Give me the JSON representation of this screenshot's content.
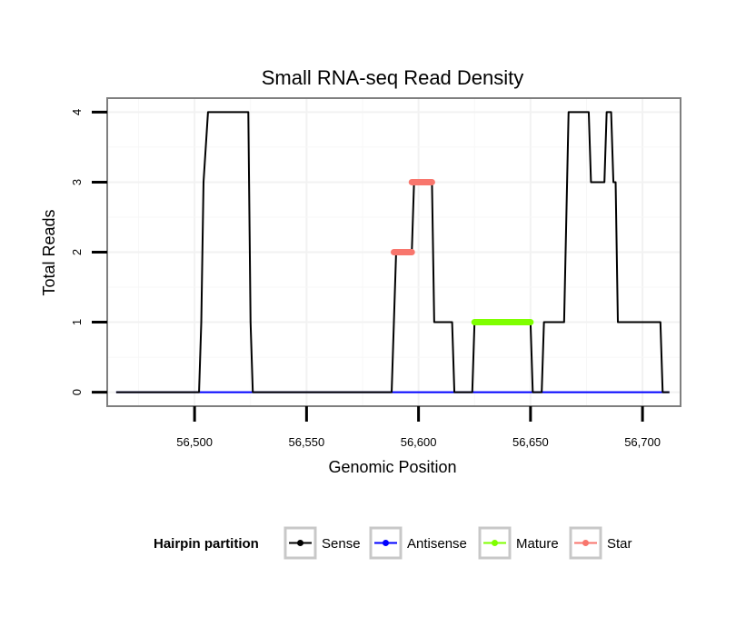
{
  "chart_data": {
    "type": "line",
    "title": "Small RNA-seq Read Density",
    "xlabel": "Genomic Position",
    "ylabel": "Total Reads",
    "xlim": [
      56461,
      56717
    ],
    "ylim": [
      -0.2,
      4.2
    ],
    "x_ticks": [
      56500,
      56550,
      56600,
      56650,
      56700
    ],
    "x_tick_labels": [
      "56,500",
      "56,550",
      "56,600",
      "56,650",
      "56,700"
    ],
    "y_ticks": [
      0,
      1,
      2,
      3,
      4
    ],
    "y_tick_labels": [
      "0",
      "1",
      "2",
      "3",
      "4"
    ],
    "grid": true,
    "legend_position": "bottom",
    "legend_title": "Hairpin partition",
    "series": [
      {
        "name": "Sense",
        "color": "#000000",
        "x": [
          56465,
          56502,
          56503,
          56504,
          56506,
          56524,
          56525,
          56526,
          56588,
          56589,
          56590,
          56597,
          56598,
          56606,
          56607,
          56615,
          56616,
          56624,
          56625,
          56650,
          56651,
          56655,
          56656,
          56665,
          56667,
          56676,
          56677,
          56683,
          56684,
          56686,
          56687,
          56688,
          56689,
          56708,
          56709,
          56712
        ],
        "values": [
          0,
          0,
          1,
          3,
          4,
          4,
          1,
          0,
          0,
          1,
          2,
          2,
          3,
          3,
          1,
          1,
          0,
          0,
          1,
          1,
          0,
          0,
          1,
          1,
          4,
          4,
          3,
          3,
          4,
          4,
          3,
          3,
          1,
          1,
          0,
          0
        ]
      },
      {
        "name": "Antisense",
        "color": "#0000ff",
        "x": [
          56465,
          56712
        ],
        "values": [
          0,
          0
        ]
      },
      {
        "name": "Mature",
        "color": "#7fff00",
        "x": [
          56625,
          56650
        ],
        "values": [
          1,
          1
        ]
      },
      {
        "name": "Star",
        "color": "#f8766d",
        "segments": [
          {
            "x": [
              56589,
              56597
            ],
            "values": [
              2,
              2
            ]
          },
          {
            "x": [
              56597,
              56606
            ],
            "values": [
              3,
              3
            ]
          }
        ]
      }
    ]
  }
}
